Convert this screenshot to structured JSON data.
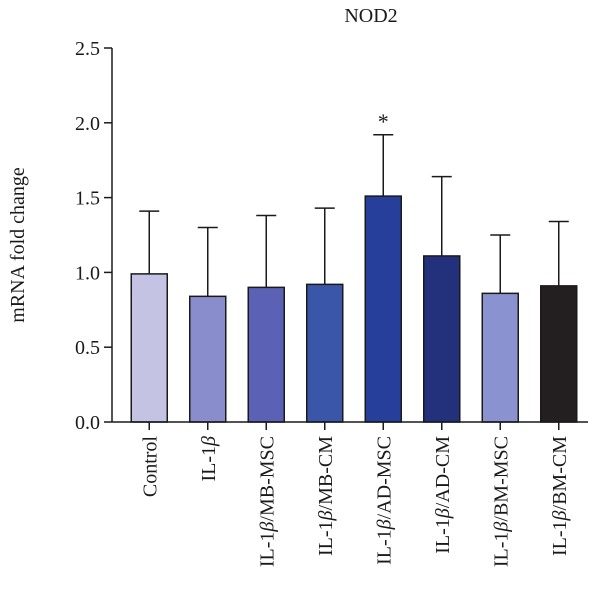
{
  "chart_data": {
    "type": "bar",
    "title": "NOD2",
    "ylabel": "mRNA fold change",
    "xlabel": "",
    "ylim": [
      0,
      2.5
    ],
    "yticks": [
      "0.0",
      "0.5",
      "1.0",
      "1.5",
      "2.0",
      "2.5"
    ],
    "categories": [
      "Control",
      "IL-1β",
      "IL-1β/MB-MSC",
      "IL-1β/MB-CM",
      "IL-1β/AD-MSC",
      "IL-1β/AD-CM",
      "IL-1β/BM-MSC",
      "IL-1β/BM-CM"
    ],
    "values": [
      0.99,
      0.84,
      0.9,
      0.92,
      1.51,
      1.11,
      0.86,
      0.91
    ],
    "error_upper": [
      1.41,
      1.3,
      1.38,
      1.43,
      1.92,
      1.64,
      1.25,
      1.34
    ],
    "bar_colors": [
      "#c5c3e4",
      "#8a8dcc",
      "#5b62b6",
      "#3a56a9",
      "#253f9a",
      "#23317c",
      "#8a92d0",
      "#231f20"
    ],
    "annotations": [
      {
        "category": "IL-1β/AD-MSC",
        "text": "*"
      }
    ]
  }
}
